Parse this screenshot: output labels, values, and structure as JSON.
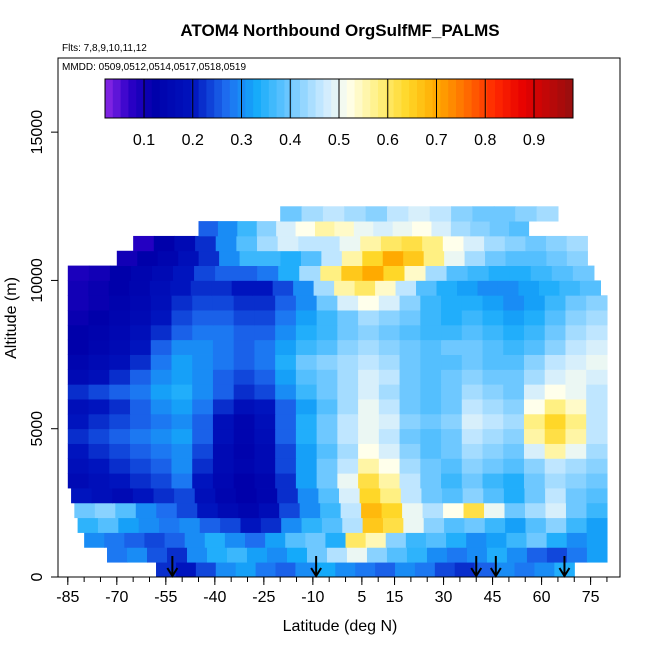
{
  "chart_data": {
    "type": "heatmap",
    "title": "ATOM4 Northbound OrgSulfMF_PALMS",
    "flights_note": "Flts: 7,8,9,10,11,12",
    "dates_note": "MMDD: 0509,0512,0514,0517,0518,0519",
    "xlabel": "Latitude (deg N)",
    "ylabel": "Altitude (m)",
    "xlim": [
      -88,
      84
    ],
    "ylim": [
      0,
      17500
    ],
    "x_ticks": [
      -85,
      -70,
      -55,
      -40,
      -25,
      -10,
      5,
      15,
      30,
      45,
      60,
      75
    ],
    "y_ticks": [
      0,
      5000,
      10000,
      15000
    ],
    "colorbar": {
      "range": [
        0.02,
        0.98
      ],
      "ticks": [
        0.1,
        0.2,
        0.3,
        0.4,
        0.5,
        0.6,
        0.7,
        0.8,
        0.9
      ],
      "placement": "top, inside plot"
    },
    "arrow_latitudes": [
      -53,
      -9,
      40,
      46,
      67
    ],
    "grid": false,
    "z_description": "organic sulfate mass fraction binned by latitude and altitude",
    "layers": [
      {
        "alt": [
          0,
          500
        ],
        "lat": [
          -58,
          70
        ],
        "values": [
          0.22,
          0.2,
          0.24,
          0.3,
          0.32,
          0.28,
          0.26,
          0.3,
          0.33,
          0.3,
          0.28,
          0.26,
          0.3,
          0.28,
          0.24,
          0.22,
          0.26,
          0.3,
          0.28,
          0.3,
          0.34
        ]
      },
      {
        "alt": [
          500,
          1000
        ],
        "lat": [
          -73,
          80
        ],
        "values": [
          0.28,
          0.3,
          0.25,
          0.22,
          0.3,
          0.34,
          0.36,
          0.32,
          0.3,
          0.33,
          0.4,
          0.45,
          0.5,
          0.42,
          0.38,
          0.35,
          0.3,
          0.28,
          0.3,
          0.34,
          0.3,
          0.26,
          0.24,
          0.28,
          0.32
        ]
      },
      {
        "alt": [
          1000,
          1500
        ],
        "lat": [
          -80,
          80
        ],
        "values": [
          0.3,
          0.28,
          0.26,
          0.24,
          0.26,
          0.3,
          0.34,
          0.3,
          0.27,
          0.32,
          0.38,
          0.4,
          0.34,
          0.6,
          0.55,
          0.42,
          0.36,
          0.38,
          0.34,
          0.3,
          0.32,
          0.36,
          0.4,
          0.34,
          0.3,
          0.32
        ]
      },
      {
        "alt": [
          1500,
          2000
        ],
        "lat": [
          -82,
          80
        ],
        "values": [
          0.35,
          0.38,
          0.32,
          0.3,
          0.28,
          0.3,
          0.26,
          0.24,
          0.2,
          0.22,
          0.3,
          0.35,
          0.38,
          0.45,
          0.66,
          0.62,
          0.5,
          0.42,
          0.38,
          0.4,
          0.36,
          0.32,
          0.38,
          0.42,
          0.36,
          0.32
        ]
      },
      {
        "alt": [
          2000,
          2500
        ],
        "lat": [
          -83,
          80
        ],
        "values": [
          0.4,
          0.42,
          0.38,
          0.3,
          0.27,
          0.24,
          0.2,
          0.16,
          0.14,
          0.17,
          0.24,
          0.3,
          0.36,
          0.46,
          0.68,
          0.64,
          0.5,
          0.45,
          0.52,
          0.62,
          0.5,
          0.4,
          0.44,
          0.48,
          0.4,
          0.36
        ]
      },
      {
        "alt": [
          2500,
          3000
        ],
        "lat": [
          -84,
          80
        ],
        "values": [
          0.2,
          0.18,
          0.16,
          0.2,
          0.22,
          0.24,
          0.18,
          0.14,
          0.12,
          0.14,
          0.22,
          0.3,
          0.38,
          0.48,
          0.64,
          0.58,
          0.46,
          0.4,
          0.38,
          0.42,
          0.38,
          0.34,
          0.4,
          0.46,
          0.4,
          0.38
        ]
      },
      {
        "alt": [
          3000,
          3500
        ],
        "lat": [
          -85,
          80
        ],
        "values": [
          0.16,
          0.18,
          0.2,
          0.22,
          0.24,
          0.28,
          0.2,
          0.15,
          0.12,
          0.14,
          0.22,
          0.32,
          0.4,
          0.5,
          0.62,
          0.56,
          0.46,
          0.4,
          0.36,
          0.4,
          0.36,
          0.34,
          0.4,
          0.44,
          0.42,
          0.4
        ]
      },
      {
        "alt": [
          3500,
          4000
        ],
        "lat": [
          -85,
          80
        ],
        "values": [
          0.18,
          0.2,
          0.22,
          0.24,
          0.26,
          0.3,
          0.22,
          0.16,
          0.14,
          0.16,
          0.24,
          0.32,
          0.4,
          0.46,
          0.56,
          0.52,
          0.44,
          0.4,
          0.38,
          0.42,
          0.4,
          0.38,
          0.42,
          0.46,
          0.44,
          0.42
        ]
      },
      {
        "alt": [
          4000,
          4500
        ],
        "lat": [
          -85,
          80
        ],
        "values": [
          0.2,
          0.22,
          0.24,
          0.26,
          0.28,
          0.3,
          0.24,
          0.16,
          0.13,
          0.16,
          0.24,
          0.32,
          0.38,
          0.44,
          0.52,
          0.48,
          0.42,
          0.38,
          0.4,
          0.44,
          0.42,
          0.4,
          0.48,
          0.56,
          0.5,
          0.44
        ]
      },
      {
        "alt": [
          4500,
          5000
        ],
        "lat": [
          -85,
          80
        ],
        "values": [
          0.22,
          0.24,
          0.26,
          0.28,
          0.3,
          0.32,
          0.26,
          0.18,
          0.14,
          0.17,
          0.26,
          0.34,
          0.4,
          0.46,
          0.5,
          0.46,
          0.4,
          0.38,
          0.4,
          0.46,
          0.44,
          0.42,
          0.56,
          0.62,
          0.56,
          0.46
        ]
      },
      {
        "alt": [
          5000,
          5500
        ],
        "lat": [
          -85,
          80
        ],
        "values": [
          0.2,
          0.22,
          0.24,
          0.26,
          0.28,
          0.3,
          0.26,
          0.18,
          0.14,
          0.18,
          0.26,
          0.34,
          0.4,
          0.46,
          0.5,
          0.48,
          0.42,
          0.4,
          0.42,
          0.48,
          0.46,
          0.44,
          0.58,
          0.64,
          0.58,
          0.46
        ]
      },
      {
        "alt": [
          5500,
          6000
        ],
        "lat": [
          -85,
          80
        ],
        "values": [
          0.18,
          0.2,
          0.22,
          0.26,
          0.3,
          0.32,
          0.28,
          0.22,
          0.18,
          0.2,
          0.26,
          0.32,
          0.38,
          0.44,
          0.5,
          0.46,
          0.4,
          0.38,
          0.4,
          0.46,
          0.44,
          0.42,
          0.52,
          0.58,
          0.54,
          0.46
        ]
      },
      {
        "alt": [
          6000,
          6500
        ],
        "lat": [
          -85,
          80
        ],
        "values": [
          0.22,
          0.24,
          0.26,
          0.28,
          0.32,
          0.34,
          0.3,
          0.26,
          0.22,
          0.24,
          0.3,
          0.36,
          0.4,
          0.44,
          0.48,
          0.44,
          0.4,
          0.38,
          0.4,
          0.44,
          0.42,
          0.4,
          0.48,
          0.52,
          0.5,
          0.46
        ]
      },
      {
        "alt": [
          6500,
          7000
        ],
        "lat": [
          -85,
          80
        ],
        "values": [
          0.16,
          0.18,
          0.22,
          0.26,
          0.3,
          0.32,
          0.3,
          0.26,
          0.24,
          0.26,
          0.32,
          0.38,
          0.4,
          0.44,
          0.48,
          0.46,
          0.4,
          0.38,
          0.4,
          0.42,
          0.4,
          0.4,
          0.44,
          0.48,
          0.5,
          0.48
        ]
      },
      {
        "alt": [
          7000,
          7500
        ],
        "lat": [
          -85,
          80
        ],
        "values": [
          0.14,
          0.16,
          0.18,
          0.22,
          0.28,
          0.32,
          0.3,
          0.28,
          0.26,
          0.28,
          0.34,
          0.4,
          0.42,
          0.44,
          0.46,
          0.44,
          0.4,
          0.38,
          0.38,
          0.4,
          0.38,
          0.38,
          0.42,
          0.46,
          0.48,
          0.5
        ]
      },
      {
        "alt": [
          7500,
          8000
        ],
        "lat": [
          -85,
          80
        ],
        "values": [
          0.12,
          0.14,
          0.16,
          0.2,
          0.26,
          0.3,
          0.3,
          0.28,
          0.26,
          0.28,
          0.32,
          0.36,
          0.38,
          0.42,
          0.44,
          0.42,
          0.4,
          0.38,
          0.4,
          0.4,
          0.38,
          0.36,
          0.38,
          0.42,
          0.46,
          0.48
        ]
      },
      {
        "alt": [
          8000,
          8500
        ],
        "lat": [
          -85,
          80
        ],
        "values": [
          0.12,
          0.13,
          0.15,
          0.18,
          0.22,
          0.26,
          0.28,
          0.28,
          0.26,
          0.26,
          0.3,
          0.34,
          0.36,
          0.4,
          0.42,
          0.4,
          0.38,
          0.36,
          0.36,
          0.38,
          0.36,
          0.34,
          0.36,
          0.4,
          0.44,
          0.46
        ]
      },
      {
        "alt": [
          8500,
          9000
        ],
        "lat": [
          -85,
          80
        ],
        "values": [
          0.11,
          0.12,
          0.14,
          0.16,
          0.2,
          0.24,
          0.26,
          0.26,
          0.24,
          0.24,
          0.28,
          0.32,
          0.36,
          0.4,
          0.44,
          0.42,
          0.4,
          0.36,
          0.34,
          0.36,
          0.34,
          0.32,
          0.34,
          0.38,
          0.42,
          0.44
        ]
      },
      {
        "alt": [
          9000,
          9500
        ],
        "lat": [
          -85,
          80
        ],
        "values": [
          0.1,
          0.11,
          0.13,
          0.15,
          0.18,
          0.22,
          0.24,
          0.24,
          0.22,
          0.22,
          0.26,
          0.3,
          0.4,
          0.48,
          0.52,
          0.48,
          0.42,
          0.36,
          0.34,
          0.34,
          0.32,
          0.3,
          0.32,
          0.36,
          0.4,
          0.42
        ]
      },
      {
        "alt": [
          9500,
          10000
        ],
        "lat": [
          -85,
          78
        ],
        "values": [
          0.1,
          0.11,
          0.12,
          0.14,
          0.17,
          0.2,
          0.22,
          0.22,
          0.2,
          0.2,
          0.24,
          0.3,
          0.44,
          0.56,
          0.6,
          0.54,
          0.46,
          0.38,
          0.34,
          0.32,
          0.3,
          0.3,
          0.32,
          0.34,
          0.36,
          0.38
        ]
      },
      {
        "alt": [
          10000,
          10500
        ],
        "lat": [
          -85,
          76
        ],
        "values": [
          0.09,
          0.1,
          0.12,
          0.14,
          0.16,
          0.2,
          0.24,
          0.26,
          0.26,
          0.28,
          0.34,
          0.44,
          0.58,
          0.66,
          0.7,
          0.64,
          0.54,
          0.44,
          0.38,
          0.36,
          0.34,
          0.34,
          0.36,
          0.38,
          0.4
        ]
      },
      {
        "alt": [
          10500,
          11000
        ],
        "lat": [
          -70,
          74
        ],
        "values": [
          0.1,
          0.12,
          0.14,
          0.18,
          0.22,
          0.3,
          0.36,
          0.36,
          0.34,
          0.38,
          0.46,
          0.56,
          0.64,
          0.7,
          0.66,
          0.58,
          0.5,
          0.44,
          0.4,
          0.38,
          0.38,
          0.4,
          0.42
        ]
      },
      {
        "alt": [
          11000,
          11500
        ],
        "lat": [
          -65,
          74
        ],
        "values": [
          0.08,
          0.12,
          0.16,
          0.22,
          0.3,
          0.38,
          0.44,
          0.48,
          0.46,
          0.46,
          0.5,
          0.56,
          0.6,
          0.62,
          0.58,
          0.52,
          0.48,
          0.44,
          0.42,
          0.4,
          0.42,
          0.44
        ]
      },
      {
        "alt": [
          11500,
          12000
        ],
        "lat": [
          -45,
          56
        ],
        "values": [
          0.26,
          0.3,
          0.36,
          0.42,
          0.48,
          0.52,
          0.56,
          0.54,
          0.5,
          0.48,
          0.5,
          0.52,
          0.48,
          0.44,
          0.42,
          0.4,
          0.38
        ]
      },
      {
        "alt": [
          12000,
          12500
        ],
        "lat": [
          -20,
          65
        ],
        "values": [
          0.4,
          0.44,
          0.46,
          0.44,
          0.42,
          0.46,
          0.48,
          0.46,
          0.42,
          0.4,
          0.4,
          0.42,
          0.44
        ]
      }
    ]
  }
}
